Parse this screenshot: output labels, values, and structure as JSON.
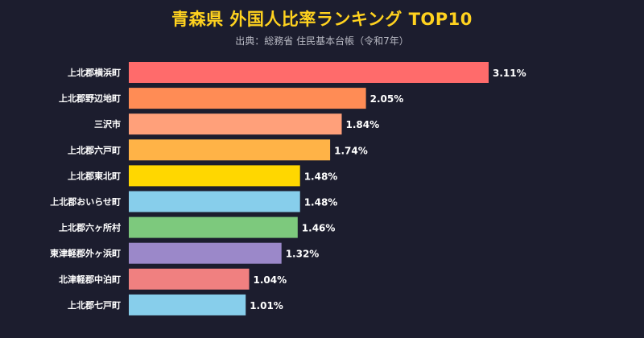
{
  "title": "青森県 外国人比率ランキング TOP10",
  "subtitle": "出典：総務省 住民基本台帳（令和7年）",
  "chart_data": {
    "type": "bar",
    "orientation": "horizontal",
    "title": "青森県 外国人比率ランキング TOP10",
    "subtitle": "出典：総務省 住民基本台帳（令和7年）",
    "categories": [
      "上北郡横浜町",
      "上北郡野辺地町",
      "三沢市",
      "上北郡六戸町",
      "上北郡東北町",
      "上北郡おいらせ町",
      "上北郡六ヶ所村",
      "東津軽郡外ヶ浜町",
      "北津軽郡中泊町",
      "上北郡七戸町"
    ],
    "values": [
      3.11,
      2.05,
      1.84,
      1.74,
      1.48,
      1.48,
      1.46,
      1.32,
      1.04,
      1.01
    ],
    "value_labels": [
      "3.11%",
      "2.05%",
      "1.84%",
      "1.74%",
      "1.48%",
      "1.48%",
      "1.46%",
      "1.32%",
      "1.04%",
      "1.01%"
    ],
    "colors": [
      "#ff6b6b",
      "#ff8c55",
      "#ffa07a",
      "#ffb347",
      "#ffd700",
      "#87ceeb",
      "#7dc97d",
      "#9b88c9",
      "#f08080",
      "#87ceeb"
    ],
    "xlim": [
      0,
      3.3
    ],
    "grid": false,
    "legend": "none"
  }
}
